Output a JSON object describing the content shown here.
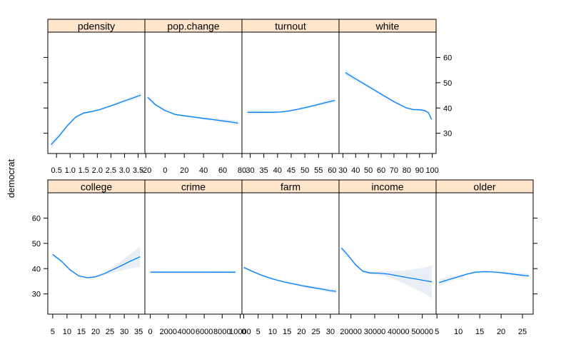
{
  "chart_data": {
    "type": "line",
    "ylabel": "democrat",
    "ylim": [
      22,
      70
    ],
    "yticks": [
      30,
      40,
      50,
      60
    ],
    "colors": {
      "line": "#0080ff",
      "band": "#e8eef6",
      "strip": "#ffe5cc",
      "frame": "#000000"
    },
    "panels": [
      {
        "name": "pdensity",
        "xlim": [
          0.18,
          3.75
        ],
        "xticks": [
          0.5,
          1.0,
          1.5,
          2.0,
          2.5,
          3.0,
          3.5
        ],
        "xtick_labels": [
          "0.5",
          "1.0",
          "1.5",
          "2.0",
          "2.5",
          "3.0",
          "3.5"
        ],
        "x": [
          0.3,
          0.6,
          0.9,
          1.2,
          1.5,
          1.8,
          2.1,
          2.4,
          2.7,
          3.0,
          3.3,
          3.6
        ],
        "y": [
          25.5,
          29.0,
          33.0,
          36.4,
          38.0,
          38.6,
          39.4,
          40.5,
          41.6,
          42.8,
          43.9,
          45.1
        ],
        "band": [
          1.5,
          0.9,
          0.6,
          0.5,
          0.4,
          0.4,
          0.4,
          0.4,
          0.5,
          0.6,
          0.8,
          1.0
        ]
      },
      {
        "name": "pop.change",
        "xlim": [
          -21,
          80
        ],
        "xticks": [
          -20,
          0,
          20,
          40,
          60,
          80
        ],
        "xtick_labels": [
          "-20",
          "0",
          "20",
          "40",
          "60",
          "80"
        ],
        "x": [
          -18,
          -10,
          0,
          10,
          20,
          30,
          40,
          50,
          60,
          70,
          76
        ],
        "y": [
          44.2,
          41.3,
          39.0,
          37.5,
          36.9,
          36.4,
          35.9,
          35.4,
          34.9,
          34.4,
          34.0
        ],
        "band": [
          1.0,
          0.6,
          0.4,
          0.4,
          0.4,
          0.4,
          0.5,
          0.6,
          0.7,
          0.8,
          1.0
        ]
      },
      {
        "name": "turnout",
        "xlim": [
          27,
          62.5
        ],
        "xticks": [
          30,
          35,
          40,
          45,
          50,
          55,
          60
        ],
        "xtick_labels": [
          "30",
          "35",
          "40",
          "45",
          "50",
          "55",
          "60"
        ],
        "x": [
          29,
          32,
          35,
          38,
          41,
          44,
          47,
          50,
          53,
          56,
          59,
          61
        ],
        "y": [
          38.3,
          38.3,
          38.3,
          38.3,
          38.4,
          38.8,
          39.4,
          40.1,
          40.9,
          41.7,
          42.5,
          43.0
        ],
        "band": [
          1.0,
          0.8,
          0.6,
          0.5,
          0.4,
          0.4,
          0.4,
          0.5,
          0.6,
          0.7,
          0.8,
          0.9
        ]
      },
      {
        "name": "white",
        "xlim": [
          27,
          103
        ],
        "xticks": [
          30,
          40,
          50,
          60,
          70,
          80,
          90,
          100
        ],
        "xtick_labels": [
          "30",
          "40",
          "50",
          "60",
          "70",
          "80",
          "90",
          "100"
        ],
        "x": [
          32,
          40,
          50,
          60,
          70,
          80,
          85,
          90,
          94,
          97,
          99.5
        ],
        "y": [
          54.0,
          51.5,
          48.5,
          45.5,
          42.5,
          40.0,
          39.4,
          39.3,
          39.0,
          38.1,
          35.5
        ],
        "band": [
          1.2,
          0.8,
          0.6,
          0.5,
          0.5,
          0.4,
          0.4,
          0.4,
          0.5,
          0.6,
          0.9
        ]
      },
      {
        "name": "college",
        "xlim": [
          3.3,
          37.2
        ],
        "xticks": [
          5,
          10,
          15,
          20,
          25,
          30,
          35
        ],
        "xtick_labels": [
          "5",
          "10",
          "15",
          "20",
          "25",
          "30",
          "35"
        ],
        "x": [
          5,
          8,
          11,
          14,
          17,
          20,
          23,
          26,
          29,
          32,
          35.5
        ],
        "y": [
          45.6,
          43.0,
          39.6,
          37.2,
          36.4,
          36.8,
          38.0,
          39.6,
          41.2,
          42.9,
          44.7
        ],
        "band": [
          0.8,
          0.5,
          0.4,
          0.4,
          0.4,
          0.5,
          0.7,
          1.2,
          1.9,
          2.8,
          4.0
        ]
      },
      {
        "name": "crime",
        "xlim": [
          -600,
          10200
        ],
        "xticks": [
          0,
          2000,
          4000,
          6000,
          8000,
          10000
        ],
        "xtick_labels": [
          "0",
          "2000",
          "4000",
          "6000",
          "8000",
          "10000"
        ],
        "x": [
          0,
          2000,
          4000,
          6000,
          8000,
          9500
        ],
        "y": [
          38.6,
          38.6,
          38.6,
          38.6,
          38.6,
          38.6
        ],
        "band": [
          0.4,
          0.4,
          0.4,
          0.4,
          0.5,
          0.6
        ]
      },
      {
        "name": "farm",
        "xlim": [
          -0.6,
          33
        ],
        "xticks": [
          0,
          5,
          10,
          15,
          20,
          25,
          30
        ],
        "xtick_labels": [
          "0",
          "5",
          "10",
          "15",
          "20",
          "25",
          "30"
        ],
        "x": [
          0,
          3,
          6,
          9,
          12,
          15,
          18,
          21,
          24,
          27,
          30,
          32
        ],
        "y": [
          40.5,
          38.9,
          37.5,
          36.3,
          35.3,
          34.5,
          33.8,
          33.1,
          32.5,
          31.9,
          31.3,
          31.0
        ],
        "band": [
          0.5,
          0.4,
          0.4,
          0.4,
          0.4,
          0.4,
          0.5,
          0.5,
          0.6,
          0.7,
          0.8,
          0.9
        ]
      },
      {
        "name": "income",
        "xlim": [
          15000,
          55800
        ],
        "xticks": [
          20000,
          30000,
          40000,
          50000
        ],
        "xtick_labels": [
          "20000",
          "30000",
          "40000",
          "50000"
        ],
        "x": [
          16000,
          19000,
          22000,
          25000,
          28000,
          32000,
          36000,
          40000,
          44000,
          48000,
          52000,
          54000
        ],
        "y": [
          48.2,
          45.0,
          41.5,
          39.0,
          38.3,
          38.2,
          37.8,
          37.1,
          36.4,
          35.8,
          35.1,
          34.8
        ],
        "band": [
          1.2,
          0.8,
          0.6,
          0.5,
          0.6,
          0.8,
          1.2,
          2.0,
          3.0,
          4.2,
          5.5,
          6.5
        ]
      },
      {
        "name": "older",
        "xlim": [
          4.8,
          27.5
        ],
        "xticks": [
          5,
          10,
          15,
          20,
          25
        ],
        "xtick_labels": [
          "5",
          "10",
          "15",
          "20",
          "25"
        ],
        "x": [
          5.5,
          8,
          10,
          12,
          14,
          16,
          18,
          20,
          22,
          24,
          26.5
        ],
        "y": [
          34.5,
          35.8,
          36.8,
          37.8,
          38.6,
          38.8,
          38.7,
          38.4,
          38.0,
          37.6,
          37.1
        ],
        "band": [
          1.4,
          0.9,
          0.6,
          0.4,
          0.4,
          0.4,
          0.4,
          0.5,
          0.6,
          0.7,
          0.9
        ]
      }
    ]
  }
}
